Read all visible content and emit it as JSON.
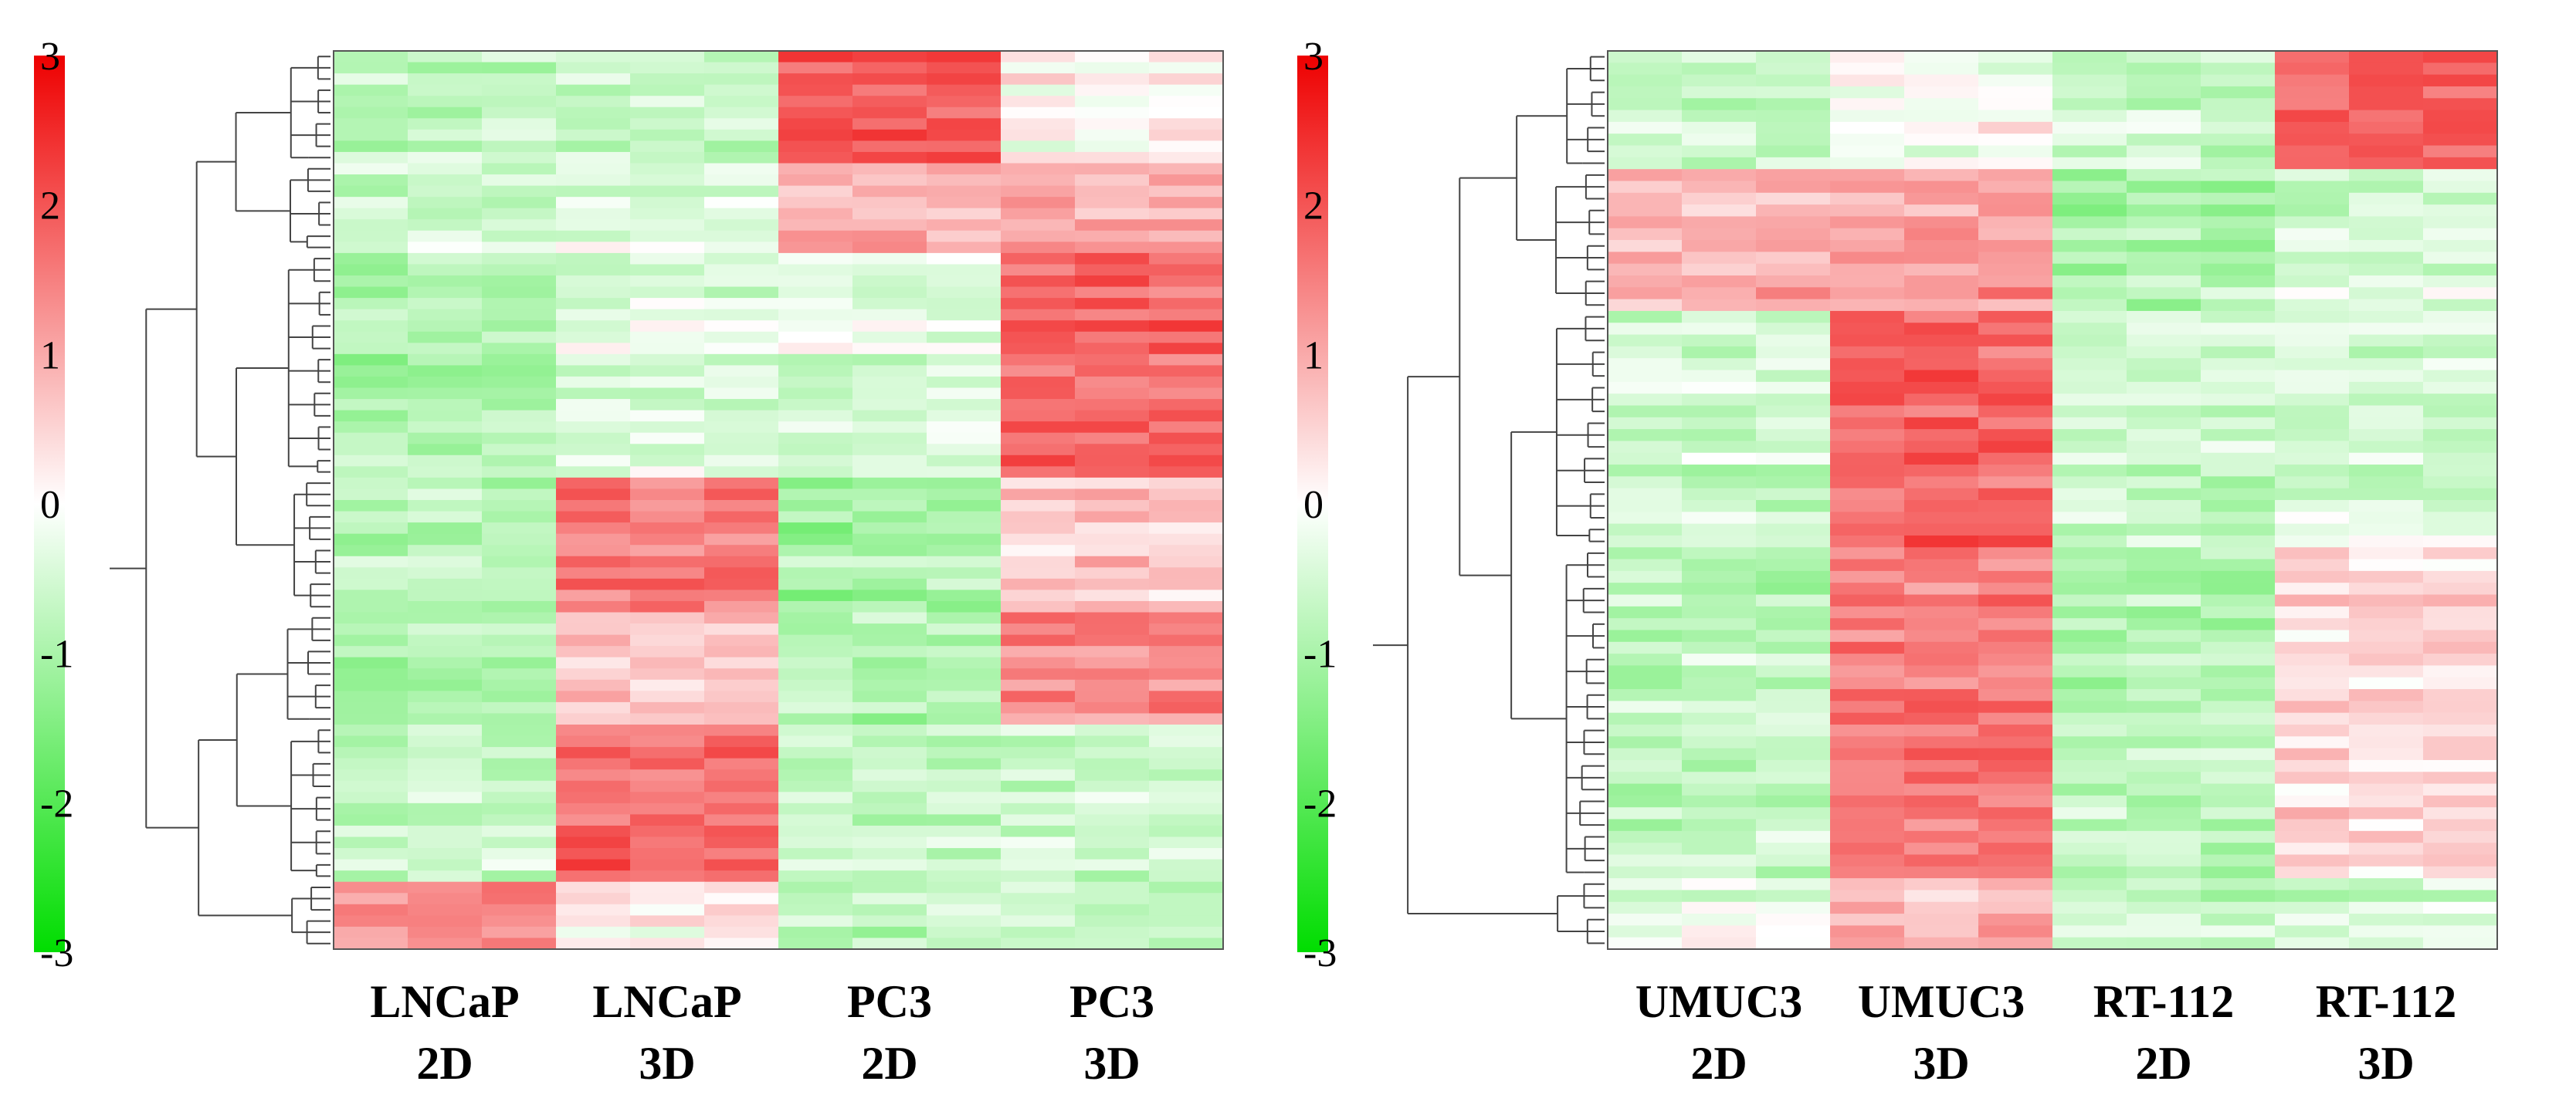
{
  "chart_data": [
    {
      "type": "heatmap",
      "title": "",
      "colorbar": {
        "ticks": [
          "3",
          "2",
          "1",
          "0",
          "-1",
          "-2",
          "-3"
        ],
        "range": [
          -3,
          3
        ],
        "low_color": "#00dd00",
        "mid_color": "#ffffff",
        "high_color": "#ee0000"
      },
      "columns": [
        {
          "line1": "LNCaP",
          "line2": "2D"
        },
        {
          "line1": "LNCaP",
          "line2": "3D"
        },
        {
          "line1": "PC3",
          "line2": "2D"
        },
        {
          "line1": "PC3",
          "line2": "3D"
        }
      ],
      "replicates_per_group": 3,
      "row_blocks": [
        {
          "rows": 10,
          "group_means": [
            -0.8,
            -0.7,
            2.0,
            0.1
          ]
        },
        {
          "rows": 8,
          "group_means": [
            -0.6,
            -0.4,
            0.9,
            1.0
          ]
        },
        {
          "rows": 20,
          "group_means": [
            -0.9,
            -0.4,
            -0.4,
            1.8
          ]
        },
        {
          "rows": 12,
          "group_means": [
            -0.9,
            1.5,
            -1.1,
            0.6
          ]
        },
        {
          "rows": 10,
          "group_means": [
            -1.0,
            0.6,
            -0.9,
            1.4
          ]
        },
        {
          "rows": 14,
          "group_means": [
            -0.6,
            1.8,
            -0.6,
            -0.5
          ]
        },
        {
          "rows": 6,
          "group_means": [
            1.3,
            0.2,
            -0.7,
            -0.7
          ]
        }
      ]
    },
    {
      "type": "heatmap",
      "title": "",
      "colorbar": {
        "ticks": [
          "3",
          "2",
          "1",
          "0",
          "-1",
          "-2",
          "-3"
        ],
        "range": [
          -3,
          3
        ],
        "low_color": "#00dd00",
        "mid_color": "#ffffff",
        "high_color": "#ee0000"
      },
      "columns": [
        {
          "line1": "UMUC3",
          "line2": "2D"
        },
        {
          "line1": "UMUC3",
          "line2": "3D"
        },
        {
          "line1": "RT-112",
          "line2": "2D"
        },
        {
          "line1": "RT-112",
          "line2": "3D"
        }
      ],
      "replicates_per_group": 3,
      "row_blocks": [
        {
          "rows": 10,
          "group_means": [
            -0.6,
            0.0,
            -0.5,
            1.9
          ]
        },
        {
          "rows": 12,
          "group_means": [
            1.0,
            1.2,
            -0.9,
            -0.4
          ]
        },
        {
          "rows": 20,
          "group_means": [
            -0.6,
            1.8,
            -0.6,
            -0.5
          ]
        },
        {
          "rows": 28,
          "group_means": [
            -0.7,
            1.6,
            -0.8,
            0.5
          ]
        },
        {
          "rows": 6,
          "group_means": [
            -0.3,
            0.8,
            -0.7,
            -0.6
          ]
        }
      ]
    }
  ]
}
